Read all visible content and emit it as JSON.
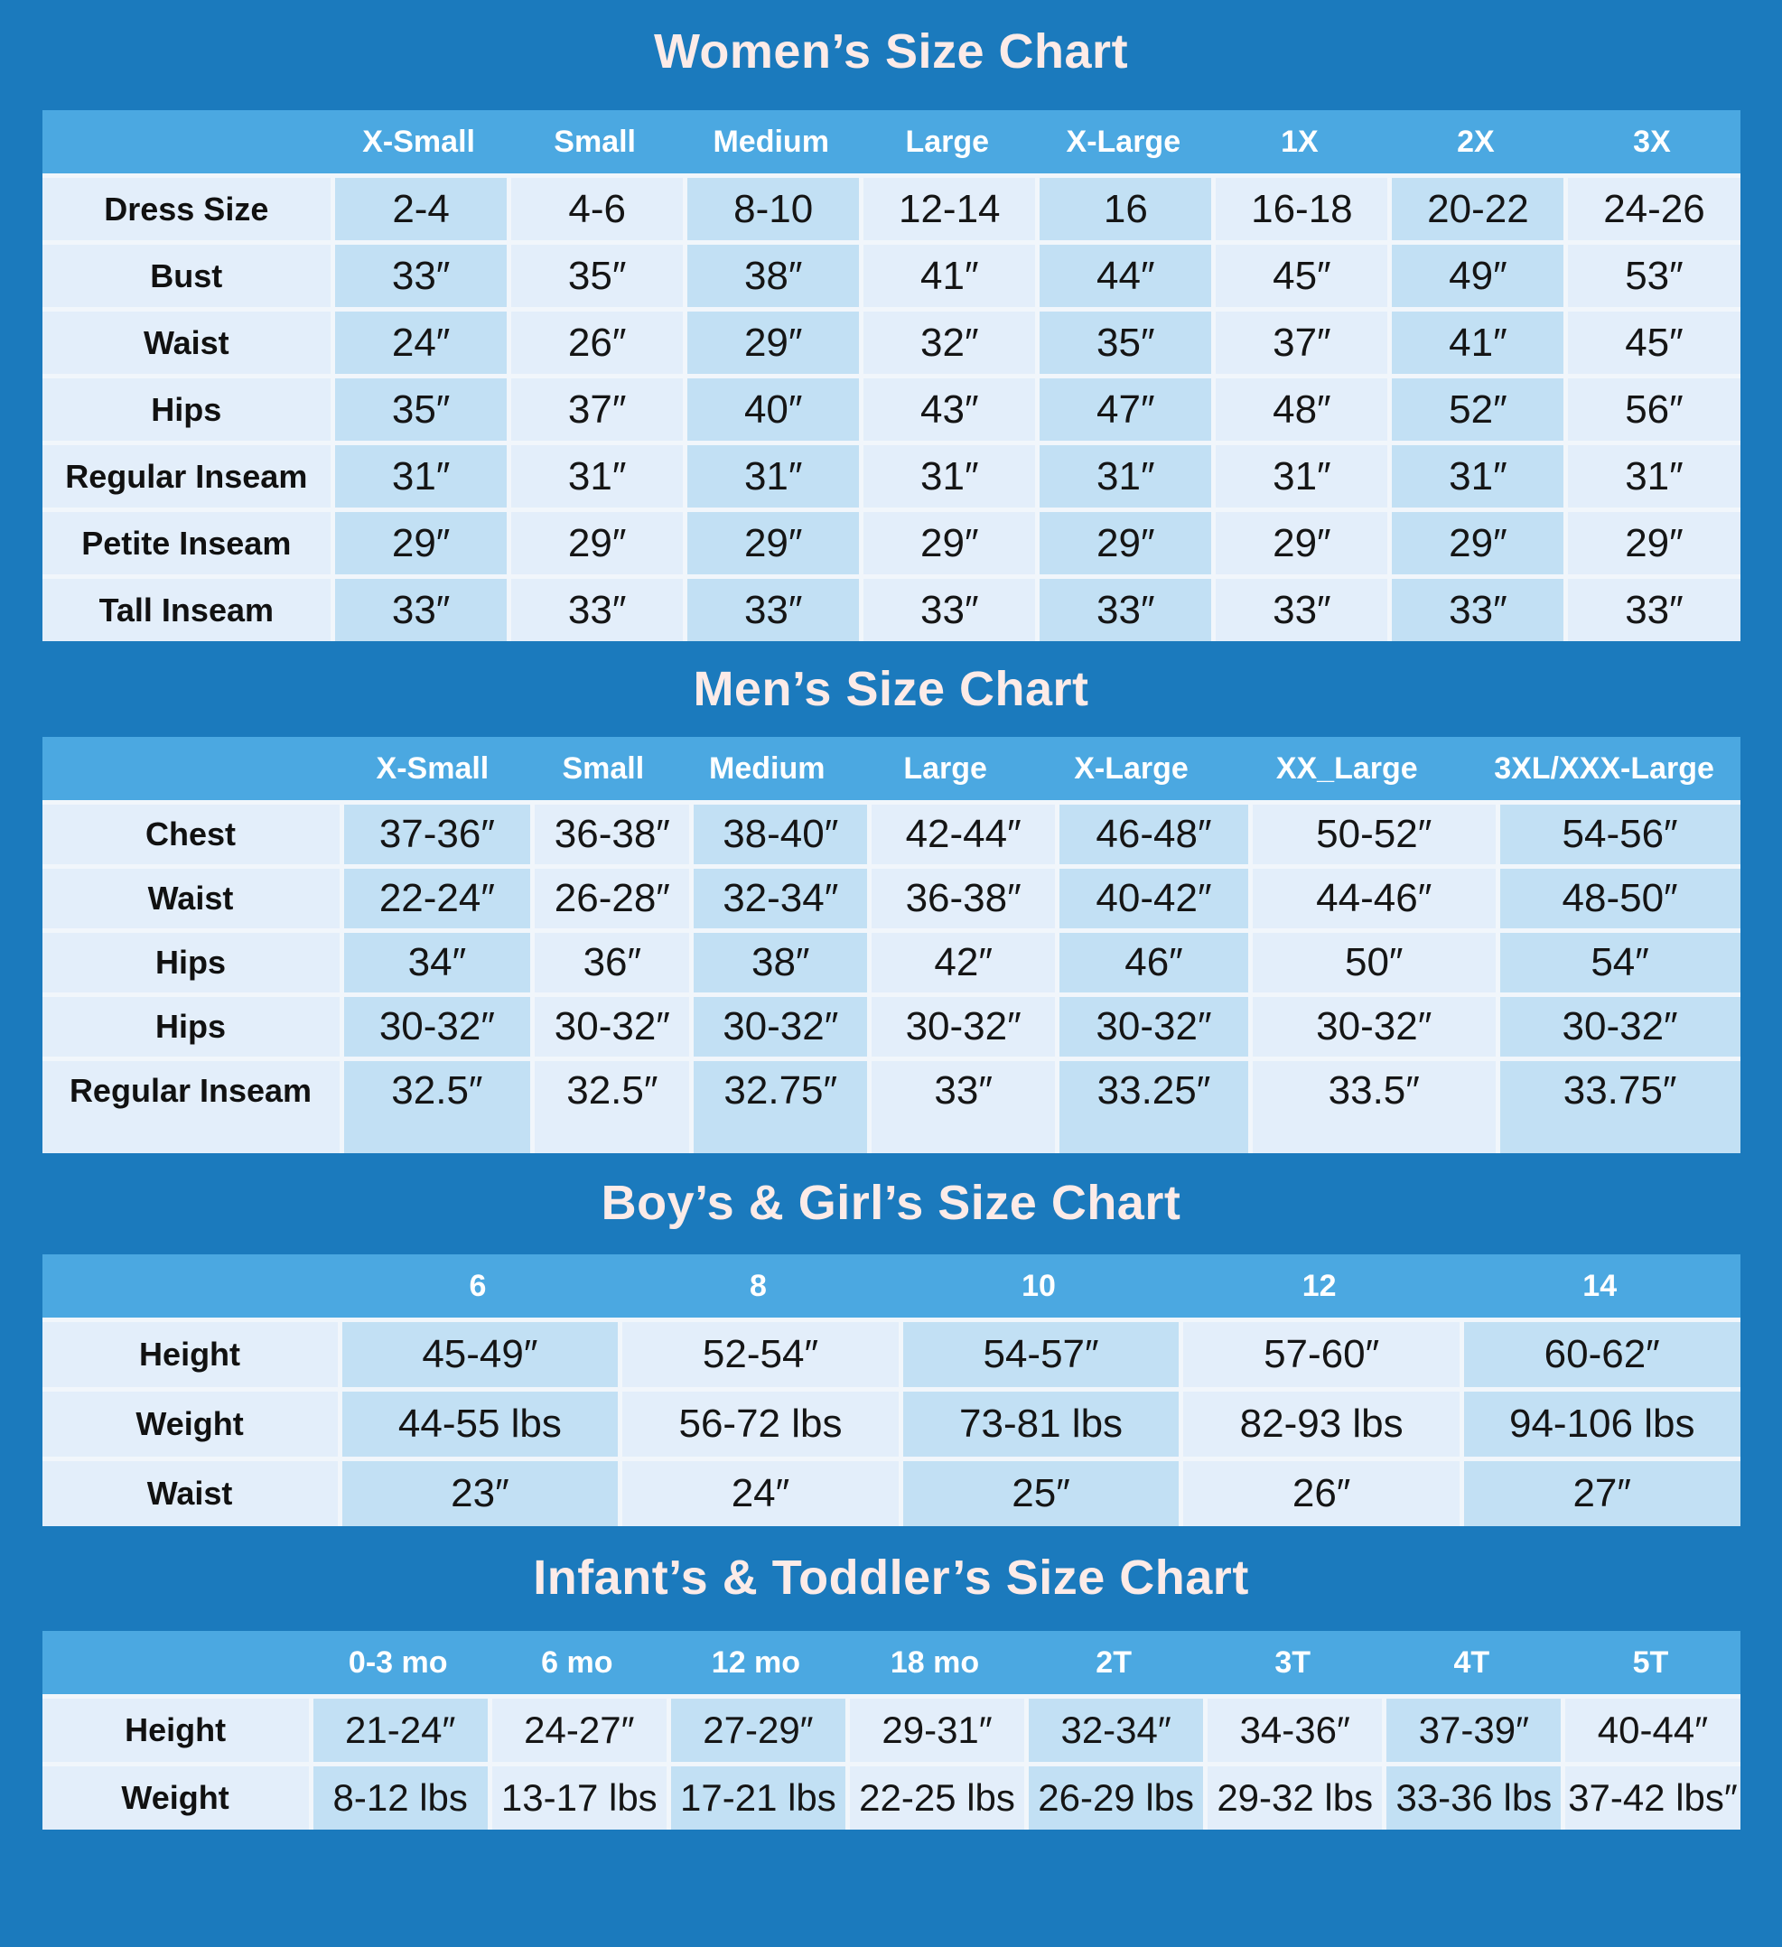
{
  "colors": {
    "background": "#1b7abd",
    "header_band": "#4ba8e1",
    "cell_dark": "#c2e0f4",
    "cell_light": "#e3eefa",
    "separator": "#f1f6fb",
    "title_text": "#fcebe8",
    "header_text": "#ffffff",
    "cell_text": "#151515"
  },
  "chart_data": [
    {
      "type": "table",
      "id": "women",
      "title": "Women’s Size Chart",
      "columns": [
        "X-Small",
        "Small",
        "Medium",
        "Large",
        "X-Large",
        "1X",
        "2X",
        "3X"
      ],
      "rows": [
        {
          "label": "Dress Size",
          "values": [
            "2-4",
            "4-6",
            "8-10",
            "12-14",
            "16",
            "16-18",
            "20-22",
            "24-26"
          ]
        },
        {
          "label": "Bust",
          "values": [
            "33″",
            "35″",
            "38″",
            "41″",
            "44″",
            "45″",
            "49″",
            "53″"
          ]
        },
        {
          "label": "Waist",
          "values": [
            "24″",
            "26″",
            "29″",
            "32″",
            "35″",
            "37″",
            "41″",
            "45″"
          ]
        },
        {
          "label": "Hips",
          "values": [
            "35″",
            "37″",
            "40″",
            "43″",
            "47″",
            "48″",
            "52″",
            "56″"
          ]
        },
        {
          "label": "Regular Inseam",
          "values": [
            "31″",
            "31″",
            "31″",
            "31″",
            "31″",
            "31″",
            "31″",
            "31″"
          ]
        },
        {
          "label": "Petite Inseam",
          "values": [
            "29″",
            "29″",
            "29″",
            "29″",
            "29″",
            "29″",
            "29″",
            "29″"
          ]
        },
        {
          "label": "Tall Inseam",
          "values": [
            "33″",
            "33″",
            "33″",
            "33″",
            "33″",
            "33″",
            "33″",
            "33″"
          ]
        }
      ],
      "bottom_padding": false
    },
    {
      "type": "table",
      "id": "men",
      "title": "Men’s Size Chart",
      "columns": [
        "X-Small",
        "Small",
        "Medium",
        "Large",
        "X-Large",
        "XX_Large",
        "3XL/XXX-Large"
      ],
      "rows": [
        {
          "label": "Chest",
          "values": [
            "37-36″",
            "36-38″",
            "38-40″",
            "42-44″",
            "46-48″",
            "50-52″",
            "54-56″"
          ]
        },
        {
          "label": "Waist",
          "values": [
            "22-24″",
            "26-28″",
            "32-34″",
            "36-38″",
            "40-42″",
            "44-46″",
            "48-50″"
          ]
        },
        {
          "label": "Hips",
          "values": [
            "34″",
            "36″",
            "38″",
            "42″",
            "46″",
            "50″",
            "54″"
          ]
        },
        {
          "label": "Hips",
          "values": [
            "30-32″",
            "30-32″",
            "30-32″",
            "30-32″",
            "30-32″",
            "30-32″",
            "30-32″"
          ]
        },
        {
          "label": "Regular Inseam",
          "values": [
            "32.5″",
            "32.5″",
            "32.75″",
            "33″",
            "33.25″",
            "33.5″",
            "33.75″"
          ]
        }
      ],
      "bottom_padding": true
    },
    {
      "type": "table",
      "id": "kids",
      "title": "Boy’s & Girl’s Size Chart",
      "columns": [
        "6",
        "8",
        "10",
        "12",
        "14"
      ],
      "rows": [
        {
          "label": "Height",
          "values": [
            "45-49″",
            "52-54″",
            "54-57″",
            "57-60″",
            "60-62″"
          ]
        },
        {
          "label": "Weight",
          "values": [
            "44-55 lbs",
            "56-72 lbs",
            "73-81 lbs",
            "82-93 lbs",
            "94-106 lbs"
          ]
        },
        {
          "label": "Waist",
          "values": [
            "23″",
            "24″",
            "25″",
            "26″",
            "27″"
          ]
        }
      ],
      "bottom_padding": false
    },
    {
      "type": "table",
      "id": "infant",
      "title": "Infant’s & Toddler’s Size Chart",
      "columns": [
        "0-3 mo",
        "6 mo",
        "12 mo",
        "18 mo",
        "2T",
        "3T",
        "4T",
        "5T"
      ],
      "rows": [
        {
          "label": "Height",
          "values": [
            "21-24″",
            "24-27″",
            "27-29″",
            "29-31″",
            "32-34″",
            "34-36″",
            "37-39″",
            "40-44″"
          ]
        },
        {
          "label": "Weight",
          "values": [
            "8-12 lbs",
            "13-17 lbs",
            "17-21 lbs",
            "22-25 lbs",
            "26-29 lbs",
            "29-32 lbs",
            "33-36 lbs",
            "37-42 lbs″"
          ]
        }
      ],
      "bottom_padding": false
    }
  ]
}
